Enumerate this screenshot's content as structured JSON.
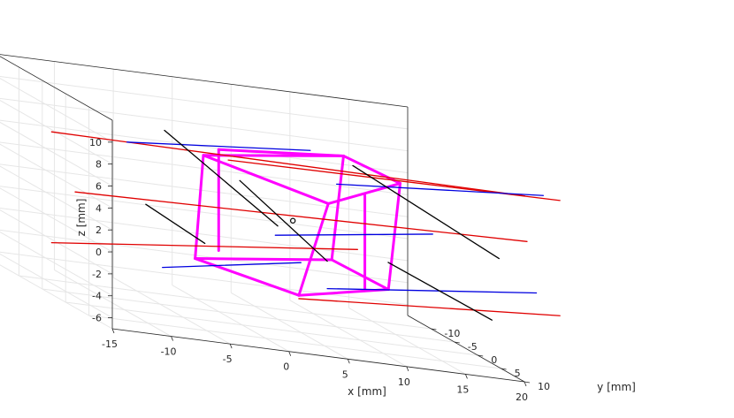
{
  "chart_data": {
    "type": "line3d",
    "title": "",
    "xlabel": "x [mm]",
    "ylabel": "y [mm]",
    "zlabel": "z [mm]",
    "xlim": [
      -15,
      20
    ],
    "ylim": [
      -15,
      10
    ],
    "zlim": [
      -7,
      12
    ],
    "x_ticks": [
      "-15",
      "-10",
      "-5",
      "0",
      "5",
      "10",
      "15",
      "20"
    ],
    "y_ticks": [
      "-10",
      "-5",
      "0",
      "5",
      "10"
    ],
    "z_ticks": [
      "-6",
      "-4",
      "-2",
      "0",
      "2",
      "4",
      "6",
      "8",
      "10"
    ],
    "grid": true,
    "colors": {
      "cube": "#ff00ff",
      "red": "#e00000",
      "blue": "#0000e0",
      "black": "#000000"
    },
    "series": [
      {
        "color": "cube",
        "width": 3,
        "segments": [
          [
            [
              -4,
              0,
              -1.5
            ],
            [
              6,
              -3,
              -4.2
            ]
          ],
          [
            [
              6,
              -3,
              -4.2
            ],
            [
              14,
              -4,
              -2.8
            ]
          ],
          [
            [
              14,
              -4,
              -2.8
            ],
            [
              8,
              -1,
              -0.2
            ]
          ],
          [
            [
              8,
              -1,
              -0.2
            ],
            [
              -4,
              0,
              -1.5
            ]
          ],
          [
            [
              -3.3,
              0,
              8
            ],
            [
              8.5,
              -3,
              4.5
            ]
          ],
          [
            [
              8.5,
              -3,
              4.5
            ],
            [
              15,
              -4,
              7
            ]
          ],
          [
            [
              15,
              -4,
              7
            ],
            [
              9,
              -1,
              9.4
            ]
          ],
          [
            [
              9,
              -1,
              9.4
            ],
            [
              -3.3,
              0,
              8
            ]
          ],
          [
            [
              -4,
              0,
              -1.5
            ],
            [
              -3.3,
              0,
              8
            ]
          ],
          [
            [
              6,
              -3,
              -4.2
            ],
            [
              8.5,
              -3,
              4.5
            ]
          ],
          [
            [
              14,
              -4,
              -2.8
            ],
            [
              15,
              -4,
              7
            ]
          ],
          [
            [
              8,
              -1,
              -0.2
            ],
            [
              9,
              -1,
              9.4
            ]
          ],
          [
            [
              -2,
              0,
              -0.5
            ],
            [
              -2,
              0,
              8.7
            ]
          ],
          [
            [
              12,
              -4,
              -3.2
            ],
            [
              12,
              -4,
              5.5
            ]
          ],
          [
            [
              -2,
              0,
              8.7
            ],
            [
              9,
              -1,
              9.4
            ]
          ]
        ]
      },
      {
        "color": "red",
        "width": 1.3,
        "segments": [
          [
            [
              -15,
              -3,
              7.8
            ],
            [
              22,
              5,
              9
            ]
          ],
          [
            [
              0,
              -3,
              7.3
            ],
            [
              25,
              5,
              9
            ]
          ],
          [
            [
              -13,
              -3,
              2.6
            ],
            [
              23,
              3,
              4.5
            ]
          ],
          [
            [
              -15,
              -3,
              -2.3
            ],
            [
              9,
              2,
              1.6
            ]
          ],
          [
            [
              6,
              -3,
              -4.5
            ],
            [
              25,
              5,
              -1.5
            ]
          ]
        ]
      },
      {
        "color": "blue",
        "width": 1.3,
        "segments": [
          [
            [
              -7,
              -7,
              7
            ],
            [
              3,
              7,
              11
            ]
          ],
          [
            [
              10,
              -5,
              6
            ],
            [
              22,
              9,
              10
            ]
          ],
          [
            [
              4,
              -3,
              1
            ],
            [
              13,
              8,
              5
            ]
          ],
          [
            [
              -4,
              -7,
              -4
            ],
            [
              3,
              5,
              0.3
            ]
          ],
          [
            [
              10,
              -7,
              -4
            ],
            [
              23,
              5,
              0.3
            ]
          ]
        ]
      },
      {
        "color": "black",
        "width": 1.3,
        "segments": [
          [
            [
              -7,
              1,
              10
            ],
            [
              5,
              -5,
              1.5
            ]
          ],
          [
            [
              -1,
              2,
              6.5
            ],
            [
              10,
              -7,
              -1.5
            ]
          ],
          [
            [
              -7,
              -3,
              2.3
            ],
            [
              0,
              -8,
              -1.5
            ]
          ],
          [
            [
              9,
              1,
              9
            ],
            [
              23,
              -3,
              1.5
            ]
          ],
          [
            [
              12,
              1,
              0.6
            ],
            [
              22,
              -2,
              -4
            ]
          ]
        ]
      }
    ],
    "center_point": {
      "x": 4.5,
      "y": -0.5,
      "z": 3
    }
  }
}
